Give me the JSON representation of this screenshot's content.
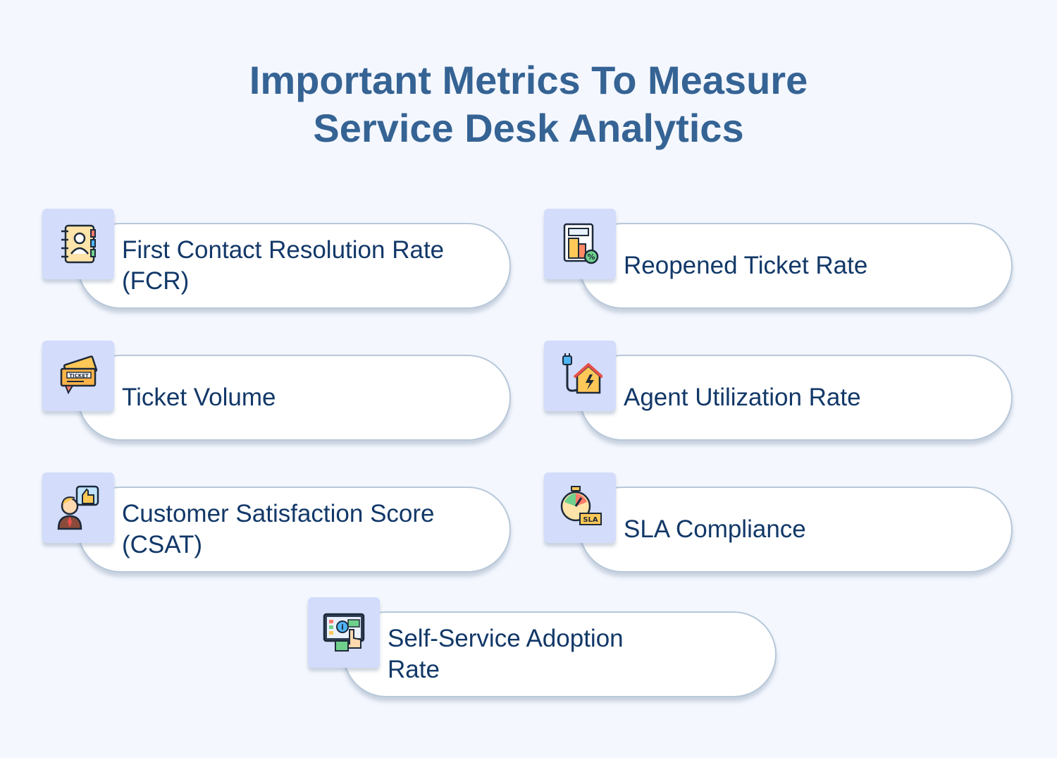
{
  "title": {
    "line1": "Important Metrics To Measure",
    "line2": "Service Desk Analytics"
  },
  "metrics": [
    {
      "label": "First Contact Resolution Rate (FCR)",
      "icon": "contact-book-icon"
    },
    {
      "label": "Reopened Ticket Rate",
      "icon": "building-percent-icon"
    },
    {
      "label": "Ticket Volume",
      "icon": "ticket-icon"
    },
    {
      "label": "Agent Utilization Rate",
      "icon": "energy-home-icon"
    },
    {
      "label": "Customer Satisfaction Score (CSAT)",
      "icon": "customer-thumbs-up-icon"
    },
    {
      "label": "SLA Compliance",
      "icon": "sla-stopwatch-icon"
    },
    {
      "label": "Self-Service Adoption Rate",
      "icon": "self-service-screen-icon"
    }
  ],
  "colors": {
    "background": "#f4f7fe",
    "title": "#356394",
    "label": "#123868",
    "icon_box": "#d3dcfb",
    "pill_border": "#b7c8d9"
  }
}
